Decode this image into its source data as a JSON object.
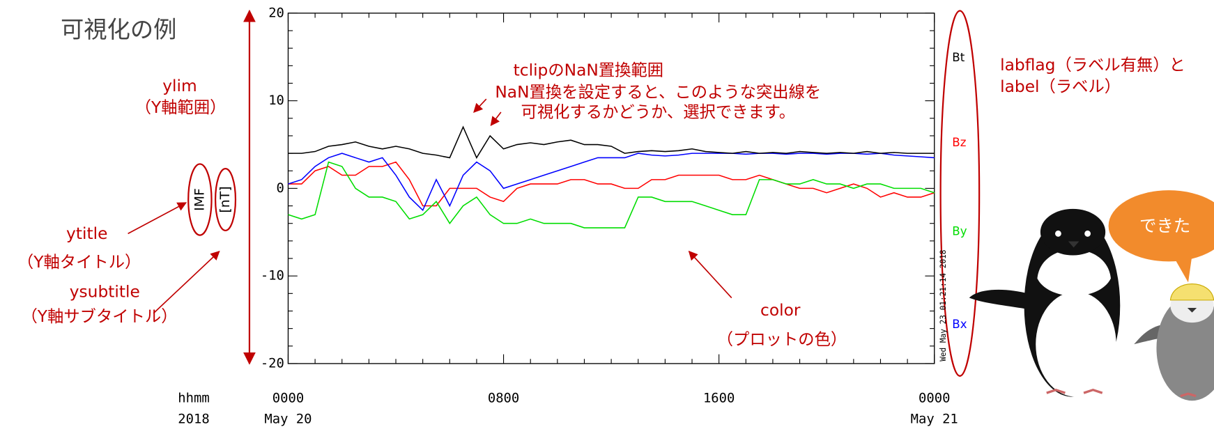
{
  "title": "可視化の例",
  "annotations": {
    "ylim": [
      "ylim",
      "（Y軸範囲）"
    ],
    "ytitle": [
      "ytitle",
      "（Y軸タイトル）"
    ],
    "ysubtitle": [
      "ysubtitle",
      "（Y軸サブタイトル）"
    ],
    "tclip": [
      "tclipのNaN置換範囲",
      "NaN置換を設定すると、このような突出線を",
      "可視化するかどうか、選択できます。"
    ],
    "color": [
      "color",
      "（プロットの色）"
    ],
    "label": [
      "labflag（ラベル有無）と",
      "label（ラベル）"
    ],
    "bubble": "できた"
  },
  "chart_data": {
    "type": "line",
    "ytitle": "IMF",
    "ysubtitle": "[nT]",
    "timestamp": "Wed May 23 01:21:14 2018",
    "x_label_rows": [
      "hhmm",
      "2018"
    ],
    "x": [
      0,
      0.5,
      1,
      1.5,
      2,
      2.5,
      3,
      3.5,
      4,
      4.5,
      5,
      5.5,
      6,
      6.5,
      7,
      7.5,
      8,
      8.5,
      9,
      9.5,
      10,
      10.5,
      11,
      11.5,
      12,
      12.5,
      13,
      13.5,
      14,
      14.5,
      15,
      15.5,
      16,
      16.5,
      17,
      17.5,
      18,
      18.5,
      19,
      19.5,
      20,
      20.5,
      21,
      21.5,
      22,
      22.5,
      23,
      23.5,
      24
    ],
    "xlim": [
      0,
      24
    ],
    "xticks": [
      {
        "value": 0,
        "label": "0000"
      },
      {
        "value": 8,
        "label": "0800"
      },
      {
        "value": 16,
        "label": "1600"
      },
      {
        "value": 24,
        "label": "0000"
      }
    ],
    "xtick_dates": [
      "May 20",
      null,
      null,
      "May 21"
    ],
    "ylim": [
      -20,
      20
    ],
    "yticks": [
      20,
      10,
      0,
      -10,
      -20
    ],
    "series": [
      {
        "name": "Bt",
        "color": "#000000",
        "values": [
          4,
          4,
          4.2,
          4.8,
          5,
          5.3,
          4.8,
          4.5,
          4.8,
          4.5,
          4,
          3.8,
          3.5,
          7,
          3.5,
          6,
          4.5,
          5,
          5.2,
          5,
          5.3,
          5.5,
          5,
          5,
          4.8,
          4,
          4.2,
          4.3,
          4.2,
          4.3,
          4.5,
          4.2,
          4.1,
          4,
          4.2,
          4,
          4.1,
          4,
          4.2,
          4.1,
          4,
          4.1,
          4,
          4.2,
          4,
          4.1,
          4,
          4,
          4
        ]
      },
      {
        "name": "Bz",
        "color": "#ff0000",
        "values": [
          0.5,
          0.5,
          2,
          2.5,
          1.5,
          1.5,
          2.5,
          2.5,
          3,
          1,
          -2,
          -2,
          0,
          0,
          0,
          -1,
          -1.5,
          0,
          0.5,
          0.5,
          0.5,
          1,
          1,
          0.5,
          0.5,
          0,
          0,
          1,
          1,
          1.5,
          1.5,
          1.5,
          1.5,
          1,
          1,
          1.5,
          1,
          0.5,
          0,
          0,
          -0.5,
          0,
          0.5,
          0,
          -1,
          -0.5,
          -1,
          -1,
          -0.5
        ]
      },
      {
        "name": "By",
        "color": "#00dd00",
        "values": [
          -3,
          -3.5,
          -3,
          3,
          2.5,
          0,
          -1,
          -1,
          -1.5,
          -3.5,
          -3,
          -1.5,
          -4,
          -2,
          -1,
          -3,
          -4,
          -4,
          -3.5,
          -4,
          -4,
          -4,
          -4.5,
          -4.5,
          -4.5,
          -4.5,
          -1,
          -1,
          -1.5,
          -1.5,
          -1.5,
          -2,
          -2.5,
          -3,
          -3,
          1,
          1,
          0.5,
          0.5,
          1,
          0.5,
          0.5,
          0,
          0.5,
          0.5,
          0,
          0,
          0,
          -0.5
        ]
      },
      {
        "name": "Bx",
        "color": "#0000ff",
        "values": [
          0.5,
          1,
          2.5,
          3.5,
          4,
          3.5,
          3,
          3.5,
          1.5,
          -1,
          -2.5,
          1,
          -2,
          1.5,
          3,
          2,
          0,
          0.5,
          1,
          1.5,
          2,
          2.5,
          3,
          3.5,
          3.5,
          3.5,
          4,
          3.8,
          3.7,
          3.8,
          4,
          4,
          4,
          4,
          3.9,
          4,
          4,
          3.9,
          4,
          4,
          3.9,
          4,
          4,
          3.9,
          4,
          3.8,
          3.7,
          3.6,
          3.5
        ]
      }
    ]
  }
}
